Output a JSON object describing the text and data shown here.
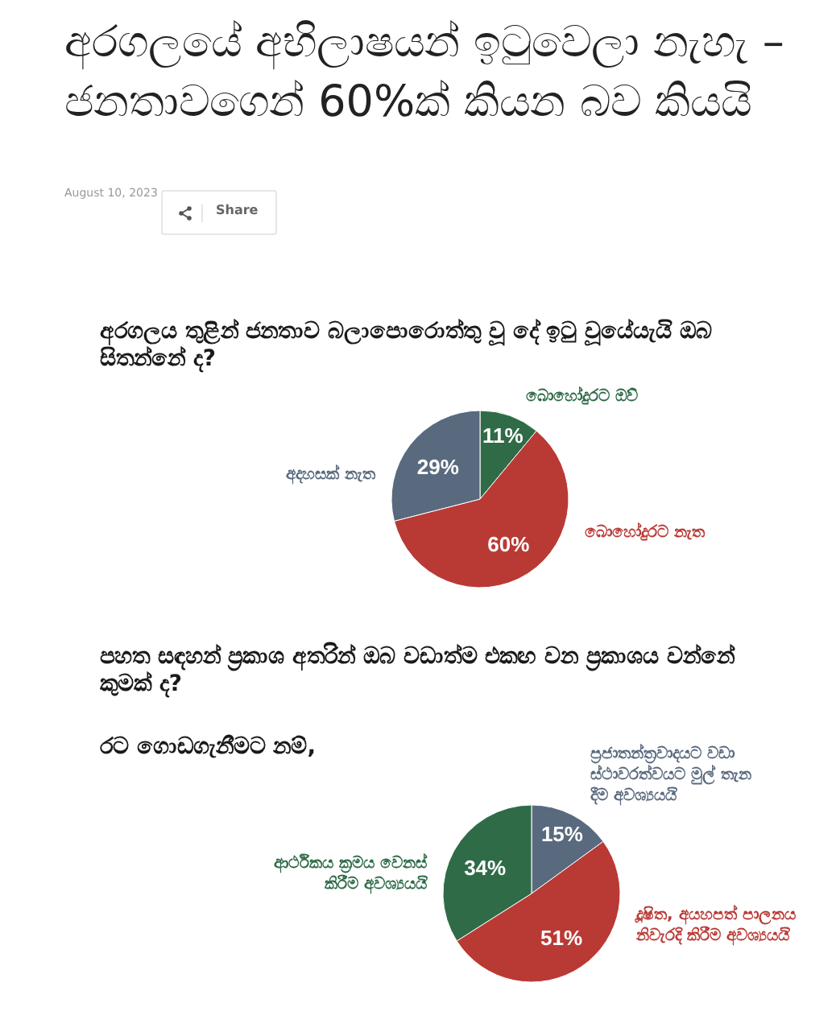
{
  "chart_data": [
    {
      "type": "other",
      "title": "අරගලයේ අභිලාෂයන් ඉටුවෙලා නැහැ – ජනතාවගෙන් 60%ක් කියන බව කියයි",
      "annotations": [
        "August 10, 2023",
        "Share"
      ]
    },
    {
      "type": "pie",
      "title": "අරගලය තුළින් ජනතාව බලාපොරොත්තු වූ දේ ඉටු වූයේයැයි ඔබ සිතන්නේ ද?",
      "categories": [
        "බොහෝදුරට ඔව්",
        "බොහෝදුරට නැත",
        "අදහසක් නැත"
      ],
      "values": [
        11,
        60,
        29
      ],
      "value_labels": [
        "11%",
        "60%",
        "29%"
      ],
      "colors": [
        "#2f6b47",
        "#b93a35",
        "#596a7e"
      ]
    },
    {
      "type": "pie",
      "title": "පහත සඳහන් ප්‍රකාශ අතරින් ඔබ වඩාත්ම එකඟ වන ප්‍රකාශය වන්නේ කුමක් ද?",
      "subtitle": "රට ගොඩගැනීමට නම්,",
      "categories": [
        "ප්‍රජාතන්ත්‍රවාදයට වඩා ස්ථාවරත්වයට මුල් තැන දීම අවශ්‍යයයි",
        "දූෂිත, අයහපත් පාලනය නිවැරදි කිරීම අවශ්‍යයයි",
        "ආර්ථිකය ක්‍රමය වෙනස් කිරීම අවශ්‍යයයි"
      ],
      "values": [
        15,
        51,
        34
      ],
      "value_labels": [
        "15%",
        "51%",
        "34%"
      ],
      "colors": [
        "#596a7e",
        "#b93a35",
        "#2f6b47"
      ]
    }
  ]
}
